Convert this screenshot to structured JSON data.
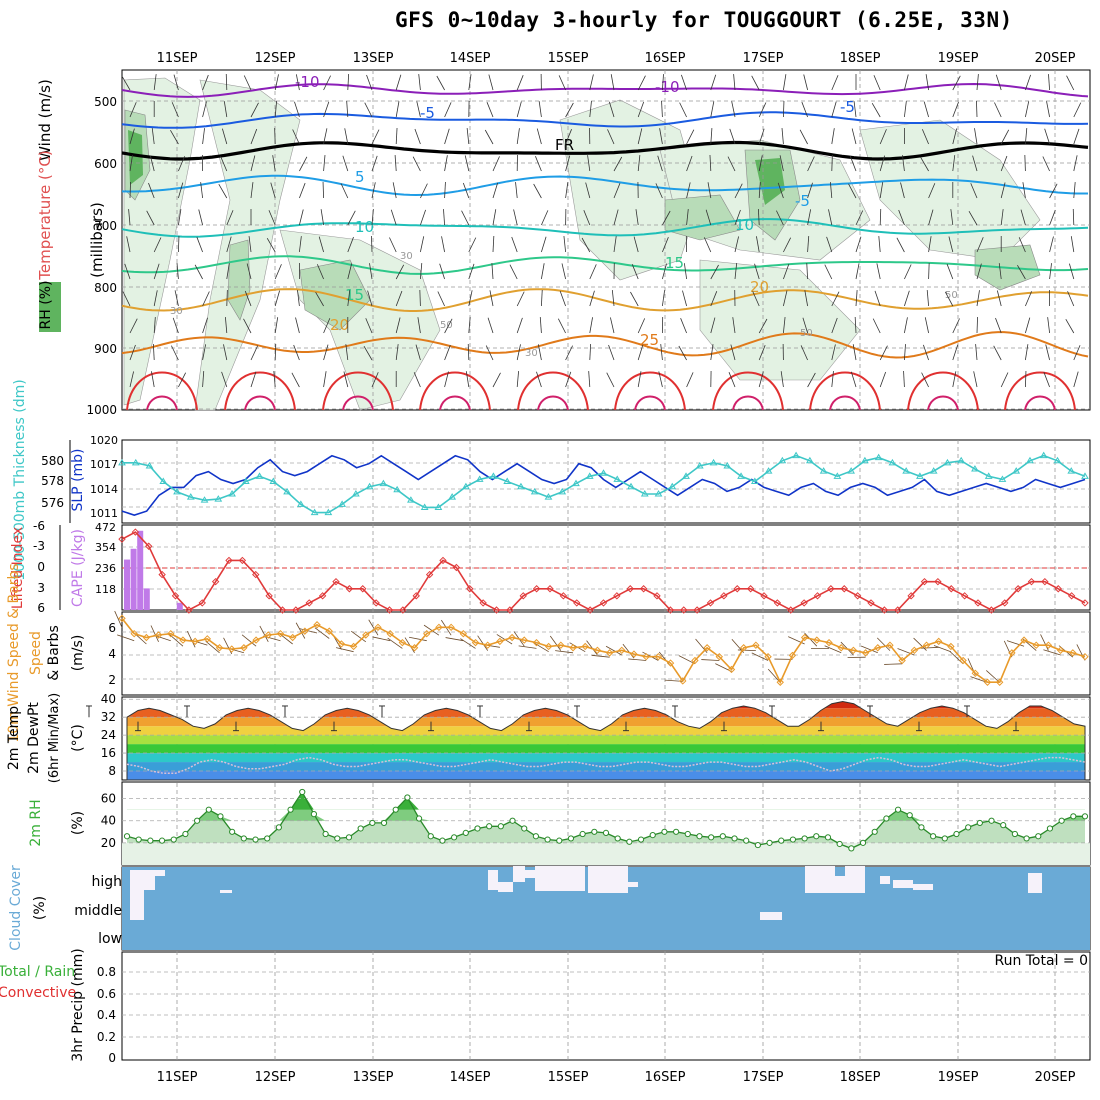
{
  "title": "GFS 0~10day 3-hourly for TOUGGOURT (6.25E, 33N)",
  "dates": [
    "11SEP",
    "12SEP",
    "13SEP",
    "14SEP",
    "15SEP",
    "16SEP",
    "17SEP",
    "18SEP",
    "19SEP",
    "20SEP"
  ],
  "colors": {
    "temp_minus10": "#8b1fb8",
    "temp_minus5": "#1a5be0",
    "freezing": "#000000",
    "temp_5": "#1f9de6",
    "temp_10": "#1fbfb8",
    "temp_15": "#2ec88a",
    "temp_20": "#e0a030",
    "temp_25": "#e07a1a",
    "temp_30": "#e03030",
    "rh_light": "#e3f2e3",
    "rh_mid": "#b8dcb8",
    "rh_dark": "#5fb45f",
    "slp": "#1034c8",
    "thickness": "#3ec7c7",
    "lifted_index": "#e03a3a",
    "cape": "#c07ae8",
    "wind_speed": "#e89a2a",
    "barbs": "#6a4a2a",
    "cloud": "#6aaad6",
    "rh2m": "#3ab03a"
  },
  "panels": {
    "upper_air": {
      "ylabel_wind": "Wind (m/s)",
      "ylabel_temp": "Temperature (°C)",
      "ylabel_rh": "RH (%)",
      "ylabel_pressure": "(millibars)",
      "pressure_ticks": [
        "500",
        "600",
        "700",
        "800",
        "900",
        "1000"
      ],
      "contour_labels": [
        "-10",
        "-10",
        "-5",
        "-5",
        "FR",
        "5",
        "-5",
        "10",
        "10",
        "15",
        "15",
        "20",
        "20",
        "25",
        "30",
        "30",
        "50",
        "50",
        "30",
        "50"
      ]
    },
    "slp_thickness": {
      "ylabel_left": "1000-500mb Thickness (dm)",
      "ylabel_right": "SLP (mb)",
      "left_ticks": [
        "580",
        "578",
        "576"
      ],
      "right_ticks": [
        "1020",
        "1017",
        "1014",
        "1011"
      ]
    },
    "cape_li": {
      "ylabel_left": "Lifted Index",
      "ylabel_right": "CAPE (J/kg)",
      "left_ticks": [
        "-6",
        "-3",
        "0",
        "3",
        "6"
      ],
      "right_ticks": [
        "472",
        "354",
        "236",
        "118"
      ]
    },
    "wind10m": {
      "ylabel": "10m Wind Speed & Barbs",
      "unit": "(m/s)",
      "ticks": [
        "6",
        "4",
        "2"
      ]
    },
    "temp2m": {
      "ylabel": "2m Temp 2m DewPt (6hr Min/Max)",
      "unit": "(°C)",
      "ticks": [
        "40",
        "32",
        "24",
        "16",
        "8"
      ]
    },
    "rh2m": {
      "ylabel": "2m RH",
      "unit": "(%)",
      "ticks": [
        "60",
        "40",
        "20"
      ]
    },
    "cloud": {
      "ylabel": "Cloud Cover",
      "unit": "(%)",
      "levels": [
        "high",
        "middle",
        "low"
      ]
    },
    "precip": {
      "ylabel_left": "Total / Rain",
      "ylabel_left2": "Convective",
      "ylabel": "3hr Precip (mm)",
      "ticks": [
        "0.8",
        "0.6",
        "0.4",
        "0.2",
        "0"
      ],
      "run_total": "Run Total = 0"
    }
  },
  "chart_data": [
    {
      "type": "line",
      "title": "SLP",
      "unit": "mb",
      "series": [
        {
          "name": "SLP",
          "values": [
            1011,
            1010.5,
            1011,
            1013,
            1014,
            1014,
            1015.5,
            1016,
            1015,
            1014.5,
            1015,
            1016.5,
            1017.5,
            1016,
            1015.5,
            1016,
            1017,
            1018,
            1017.5,
            1016.5,
            1017,
            1018,
            1017,
            1016,
            1015,
            1016,
            1017,
            1018,
            1017.5,
            1016,
            1015,
            1016,
            1017,
            1016,
            1015,
            1014.5,
            1015,
            1017,
            1016.5,
            1015,
            1014,
            1015,
            1016,
            1015,
            1014,
            1013,
            1014,
            1015,
            1014.5,
            1013.5,
            1014,
            1015,
            1014,
            1013.5,
            1013,
            1014,
            1014.5,
            1013.5,
            1013,
            1014,
            1014.5,
            1014,
            1013,
            1013.5,
            1014,
            1015,
            1013.5,
            1013,
            1013.5,
            1014,
            1014.5,
            1014,
            1013.5,
            1014,
            1015,
            1014.5,
            1014,
            1014.5,
            1015
          ]
        }
      ]
    },
    {
      "type": "line",
      "title": "1000-500mb Thickness",
      "unit": "dm",
      "series": [
        {
          "name": "Thickness",
          "values": [
            579.8,
            579.8,
            579.5,
            578,
            577,
            576.5,
            576.2,
            576.3,
            576.8,
            578,
            578.5,
            578,
            577,
            575.8,
            575,
            575,
            575.8,
            576.8,
            577.5,
            577.8,
            577.2,
            576.2,
            575.5,
            575.5,
            576.5,
            577.5,
            578.2,
            578.5,
            578,
            577.5,
            577,
            576.5,
            577,
            577.8,
            578.5,
            578.8,
            578.2,
            577.5,
            576.8,
            576.8,
            577.5,
            578.5,
            579.5,
            579.8,
            579.5,
            578.5,
            578,
            579,
            580,
            580.5,
            580,
            579,
            578.5,
            579,
            580,
            580.3,
            579.8,
            579,
            578.5,
            579,
            579.8,
            580,
            579.2,
            578.5,
            578.2,
            579,
            580,
            580.5,
            580,
            579,
            578.5
          ]
        }
      ]
    },
    {
      "type": "line",
      "title": "Lifted Index",
      "unit": "",
      "series": [
        {
          "name": "LI",
          "values": [
            -4,
            -5,
            -3,
            1,
            4,
            6,
            5,
            2,
            -1,
            -1,
            1,
            4,
            6,
            6,
            5,
            4,
            2,
            3,
            3,
            5,
            6,
            6,
            4,
            1,
            -1,
            0,
            3,
            5,
            6,
            6,
            4,
            3,
            3,
            4,
            5,
            6,
            5,
            4,
            3,
            3,
            4,
            6,
            6,
            6,
            5,
            4,
            3,
            3,
            4,
            5,
            6,
            5,
            4,
            3,
            3,
            4,
            5,
            6,
            6,
            4,
            2,
            2,
            3,
            4,
            5,
            6,
            5,
            3,
            2,
            2,
            3,
            4,
            5
          ]
        }
      ]
    },
    {
      "type": "bar",
      "title": "CAPE",
      "unit": "J/kg",
      "x": [
        0,
        1,
        2,
        3,
        8
      ],
      "values": [
        280,
        340,
        440,
        120,
        40
      ]
    },
    {
      "type": "line",
      "title": "10m Wind Speed",
      "unit": "m/s",
      "series": [
        {
          "name": "Speed",
          "values": [
            6.5,
            5.3,
            5,
            5.2,
            5.3,
            4.8,
            4.7,
            4.9,
            4.2,
            4.1,
            4.2,
            4.8,
            5.2,
            5.3,
            5,
            5.5,
            6,
            5.5,
            4.5,
            4.3,
            5.2,
            5.8,
            5.3,
            4.6,
            4.2,
            5.3,
            5.8,
            5.8,
            5.3,
            4.6,
            4.4,
            4.7,
            5,
            4.8,
            4.6,
            4.3,
            4.4,
            4.2,
            4.3,
            4,
            3.8,
            4,
            3.7,
            3.5,
            3.5,
            3,
            1.6,
            3.2,
            4.2,
            3.5,
            2.5,
            4.2,
            4.4,
            3.5,
            1.5,
            3.6,
            5,
            4.8,
            4.6,
            4.2,
            4,
            3.8,
            4.2,
            4.4,
            3.2,
            4,
            4.4,
            4.7,
            4.3,
            3.2,
            2.2,
            1.5,
            1.5,
            3.8,
            4.8,
            4.4,
            4.4,
            4,
            3.8,
            3.5
          ]
        }
      ]
    },
    {
      "type": "area",
      "title": "2m Temp",
      "unit": "°C",
      "series": [
        {
          "name": "Temp",
          "values": [
            32,
            35,
            36,
            35,
            33,
            31,
            28,
            27,
            29,
            33,
            35,
            36,
            35,
            33,
            30,
            27,
            26,
            29,
            33,
            35,
            36,
            35,
            33,
            30,
            27,
            26,
            29,
            33,
            35,
            36,
            35,
            33,
            30,
            27,
            26,
            29,
            33,
            35,
            36,
            35,
            33,
            30,
            27,
            26,
            29,
            33,
            35,
            36,
            35,
            33,
            30,
            28,
            27,
            30,
            34,
            36,
            37,
            36,
            34,
            31,
            28,
            28,
            31,
            35,
            38,
            39,
            38,
            35,
            32,
            29,
            28,
            31,
            34,
            36,
            37,
            36,
            34,
            31,
            28,
            27,
            30,
            34,
            37,
            37,
            35,
            32,
            29,
            28
          ]
        },
        {
          "name": "DewPt",
          "values": [
            11,
            10,
            8,
            7,
            7,
            9,
            12,
            13,
            12,
            10,
            9,
            9,
            10,
            11,
            13,
            14,
            13,
            11,
            10,
            10,
            11,
            12,
            13,
            13,
            12,
            11,
            10,
            10,
            11,
            12,
            13,
            12,
            11,
            10,
            10,
            11,
            12,
            12,
            11,
            10,
            10,
            11,
            12,
            12,
            11,
            10,
            10,
            11,
            12,
            12,
            11,
            10,
            10,
            11,
            12,
            13,
            12,
            10,
            8,
            9,
            11,
            13,
            14,
            13,
            11,
            10,
            10,
            11,
            12,
            13,
            12,
            11,
            10,
            11,
            12,
            13,
            14,
            14,
            13,
            12
          ]
        }
      ]
    },
    {
      "type": "area",
      "title": "2m RH",
      "unit": "%",
      "series": [
        {
          "name": "RH",
          "values": [
            26,
            23,
            22,
            22,
            23,
            28,
            40,
            50,
            44,
            30,
            24,
            23,
            24,
            34,
            50,
            66,
            46,
            28,
            24,
            25,
            33,
            38,
            38,
            50,
            61,
            42,
            26,
            22,
            25,
            29,
            33,
            35,
            35,
            40,
            33,
            26,
            23,
            22,
            24,
            28,
            30,
            29,
            24,
            21,
            23,
            27,
            30,
            30,
            28,
            26,
            25,
            26,
            24,
            22,
            18,
            20,
            22,
            23,
            24,
            26,
            25,
            19,
            15,
            20,
            30,
            42,
            50,
            45,
            34,
            26,
            24,
            28,
            34,
            38,
            40,
            36,
            28,
            24,
            26,
            33,
            40,
            44,
            44
          ]
        }
      ]
    },
    {
      "type": "bar",
      "title": "3hr Precip",
      "unit": "mm",
      "categories": [
        "11SEP",
        "12SEP",
        "13SEP",
        "14SEP",
        "15SEP",
        "16SEP",
        "17SEP",
        "18SEP",
        "19SEP",
        "20SEP"
      ],
      "values": [
        0,
        0,
        0,
        0,
        0,
        0,
        0,
        0,
        0,
        0
      ],
      "ylim": [
        0,
        0.9
      ]
    }
  ]
}
